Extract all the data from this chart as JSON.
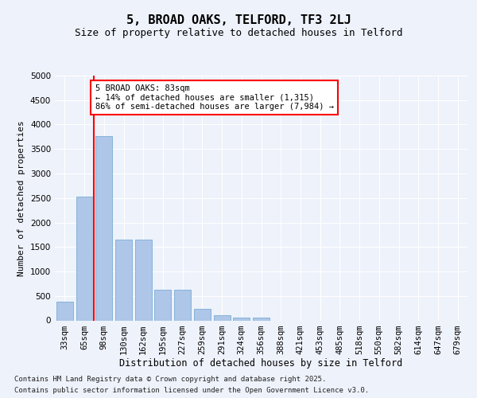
{
  "title1": "5, BROAD OAKS, TELFORD, TF3 2LJ",
  "title2": "Size of property relative to detached houses in Telford",
  "xlabel": "Distribution of detached houses by size in Telford",
  "ylabel": "Number of detached properties",
  "categories": [
    "33sqm",
    "65sqm",
    "98sqm",
    "130sqm",
    "162sqm",
    "195sqm",
    "227sqm",
    "259sqm",
    "291sqm",
    "324sqm",
    "356sqm",
    "388sqm",
    "421sqm",
    "453sqm",
    "485sqm",
    "518sqm",
    "550sqm",
    "582sqm",
    "614sqm",
    "647sqm",
    "679sqm"
  ],
  "bar_heights": [
    380,
    2530,
    3760,
    1650,
    1650,
    620,
    620,
    230,
    100,
    60,
    50,
    0,
    0,
    0,
    0,
    0,
    0,
    0,
    0,
    0,
    0
  ],
  "bar_color": "#aec6e8",
  "bar_edgecolor": "#7aadd4",
  "vline_color": "red",
  "vline_x": 1.5,
  "annotation_text": "5 BROAD OAKS: 83sqm\n← 14% of detached houses are smaller (1,315)\n86% of semi-detached houses are larger (7,984) →",
  "annotation_box_facecolor": "white",
  "annotation_box_edgecolor": "red",
  "ylim": [
    0,
    5000
  ],
  "yticks": [
    0,
    500,
    1000,
    1500,
    2000,
    2500,
    3000,
    3500,
    4000,
    4500,
    5000
  ],
  "footnote1": "Contains HM Land Registry data © Crown copyright and database right 2025.",
  "footnote2": "Contains public sector information licensed under the Open Government Licence v3.0.",
  "bg_color": "#eef2fb",
  "title1_fontsize": 11,
  "title2_fontsize": 9,
  "xlabel_fontsize": 8.5,
  "ylabel_fontsize": 8,
  "tick_fontsize": 7.5,
  "annot_fontsize": 7.5,
  "footnote_fontsize": 6.5
}
